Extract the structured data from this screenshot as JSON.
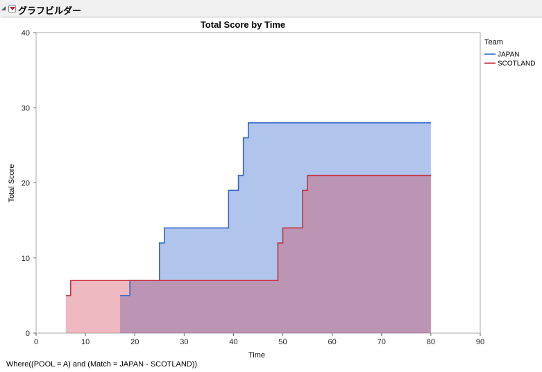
{
  "window": {
    "header_title": "グラフビルダー",
    "where_clause": "Where((POOL = A) and (Match = JAPAN - SCOTLAND))"
  },
  "chart_data": {
    "type": "area",
    "step": true,
    "title": "Total Score by Time",
    "xlabel": "Time",
    "ylabel": "Total Score",
    "xlim": [
      0,
      90
    ],
    "ylim": [
      0,
      40
    ],
    "xticks": [
      0,
      10,
      20,
      30,
      40,
      50,
      60,
      70,
      80,
      90
    ],
    "yticks": [
      0,
      10,
      20,
      30,
      40
    ],
    "grid": false,
    "legend": {
      "title": "Team",
      "position": "right"
    },
    "series": [
      {
        "name": "JAPAN",
        "color": "#3366cc",
        "fill": "rgba(51,102,204,0.38)",
        "points": [
          [
            17,
            5
          ],
          [
            19,
            7
          ],
          [
            25,
            12
          ],
          [
            26,
            14
          ],
          [
            39,
            19
          ],
          [
            41,
            21
          ],
          [
            42,
            26
          ],
          [
            43,
            28
          ],
          [
            80,
            28
          ]
        ]
      },
      {
        "name": "SCOTLAND",
        "color": "#c8303b",
        "fill": "rgba(210,70,90,0.38)",
        "points": [
          [
            6,
            5
          ],
          [
            7,
            7
          ],
          [
            49,
            12
          ],
          [
            50,
            14
          ],
          [
            54,
            19
          ],
          [
            55,
            21
          ],
          [
            80,
            21
          ]
        ]
      }
    ]
  }
}
